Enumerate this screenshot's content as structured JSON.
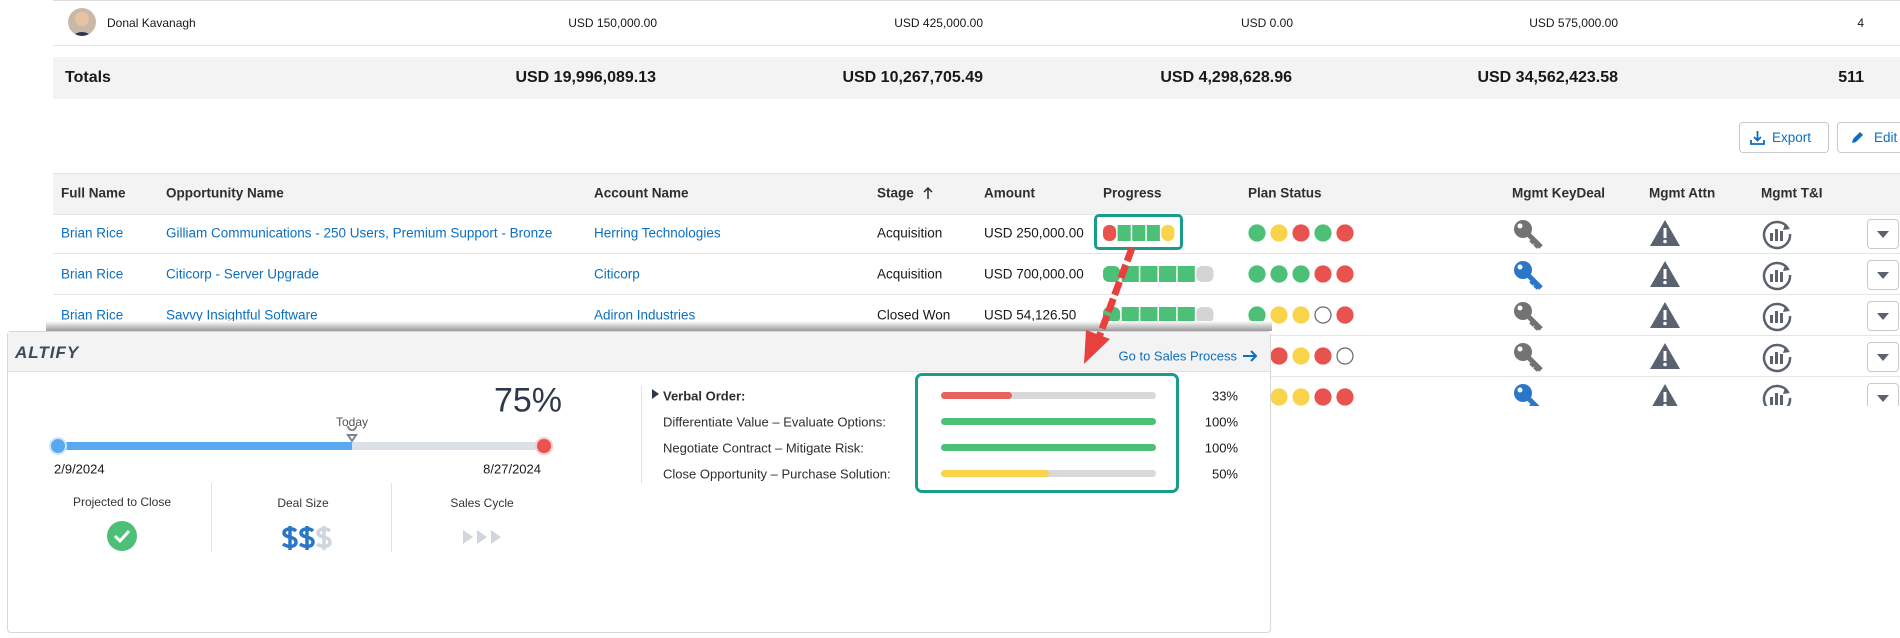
{
  "summary": {
    "row": {
      "name": "Donal Kavanagh",
      "amounts": [
        "USD 150,000.00",
        "USD 425,000.00",
        "USD 0.00",
        "USD 575,000.00"
      ],
      "count": 4
    },
    "totals": {
      "label": "Totals",
      "amounts": [
        "USD 19,996,089.13",
        "USD 10,267,705.49",
        "USD 4,298,628.96",
        "USD 34,562,423.58"
      ],
      "count": 511
    }
  },
  "buttons": {
    "export": "Export",
    "edit": "Edit"
  },
  "opportunities": {
    "headers": [
      "Full Name",
      "Opportunity Name",
      "Account Name",
      "Stage",
      "Amount",
      "Progress",
      "Plan Status",
      "Mgmt KeyDeal",
      "Mgmt Attn",
      "Mgmt T&I"
    ],
    "rows": [
      [
        "Brian Rice",
        "Gilliam Communications - 250 Users, Premium Support - Bronze",
        "Herring Technologies",
        "Acquisition",
        "USD 250,000.00"
      ],
      [
        "Brian Rice",
        "Citicorp - Server Upgrade",
        "Citicorp",
        "Acquisition",
        "USD 700,000.00"
      ],
      [
        "Brian Rice",
        "Savvy Insightful Software",
        "Adiron Industries",
        "Closed Won",
        "USD 54,126.50"
      ]
    ]
  },
  "popup": {
    "logo": "ALTIFY",
    "link": "Go to Sales Process",
    "percent": "75%",
    "today": "Today",
    "start_date": "2/9/2024",
    "end_date": "8/27/2024",
    "metrics": [
      "Projected to Close",
      "Deal Size",
      "Sales Cycle"
    ],
    "stages": [
      {
        "label": "Verbal Order:",
        "percent": {
          "value": 33,
          "label": "33%"
        },
        "color": "#e8625f"
      },
      {
        "label": "Differentiate Value – Evaluate Options:",
        "percent": {
          "value": 100,
          "label": "100%"
        },
        "color": "#4bc076"
      },
      {
        "label": "Negotiate Contract – Mitigate Risk:",
        "percent": {
          "value": 100,
          "label": "100%"
        },
        "color": "#4bc076"
      },
      {
        "label": "Close Opportunity – Purchase Solution:",
        "percent": {
          "value": 50,
          "label": "50%"
        },
        "color": "#f9d44b"
      }
    ]
  }
}
